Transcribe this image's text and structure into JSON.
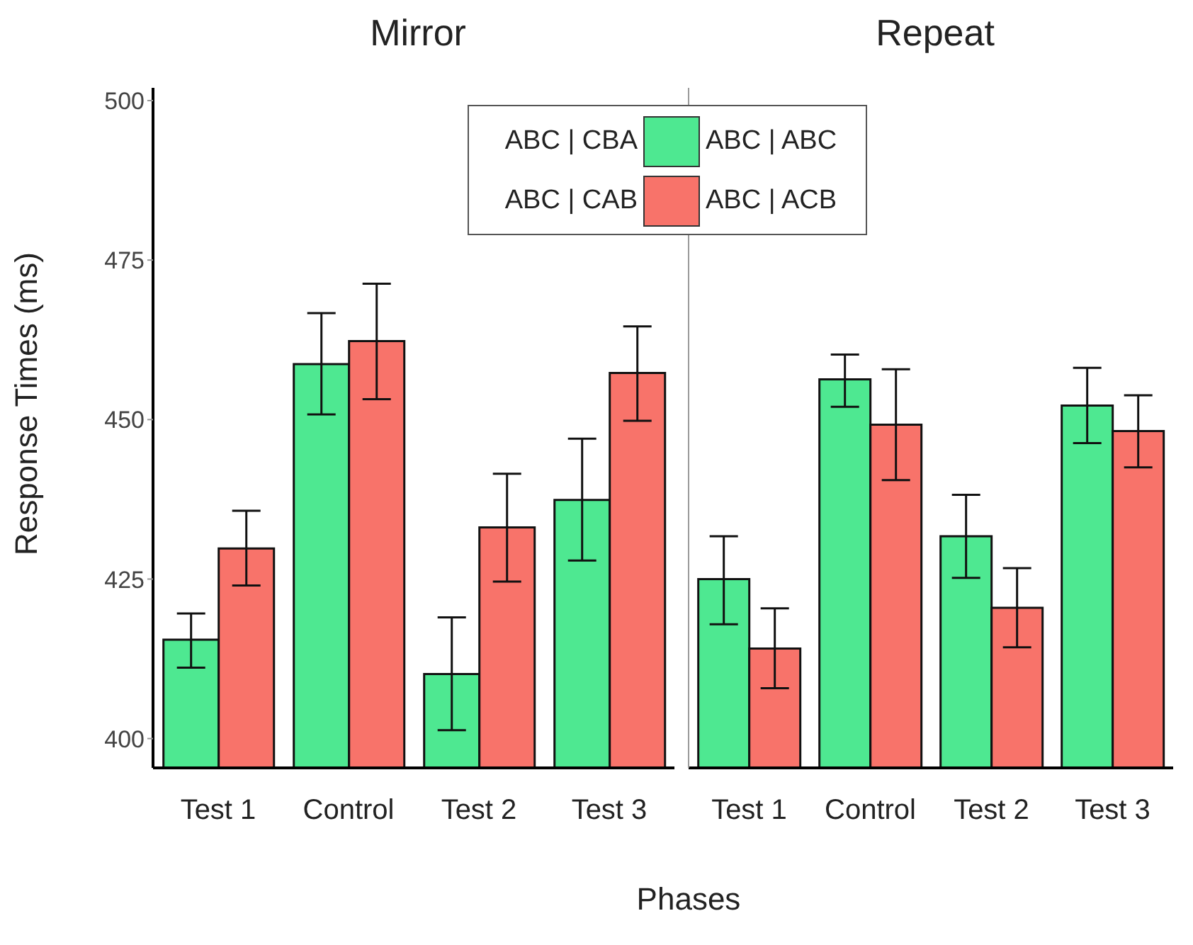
{
  "chart_data": [
    {
      "type": "bar",
      "title": "Mirror",
      "ylabel": "Response Times (ms)",
      "categories": [
        "Test 1",
        "Control",
        "Test 2",
        "Test 3"
      ],
      "ylim": [
        395.4,
        502
      ],
      "yticks": [
        400,
        425,
        450,
        475,
        500
      ],
      "legend": "top",
      "grid": false,
      "series": [
        {
          "name": "ABC | CBA",
          "color": "#4ee891",
          "values": [
            415.5,
            458.7,
            410.1,
            437.4
          ],
          "errors": [
            [
              411.1,
              419.6
            ],
            [
              450.8,
              466.7
            ],
            [
              401.3,
              419
            ],
            [
              427.9,
              447
            ]
          ]
        },
        {
          "name": "ABC | CAB",
          "color": "#f8736a",
          "values": [
            429.8,
            462.3,
            433.1,
            457.3
          ],
          "errors": [
            [
              424,
              435.7
            ],
            [
              453.2,
              471.3
            ],
            [
              424.6,
              441.5
            ],
            [
              449.8,
              464.6
            ]
          ]
        }
      ]
    },
    {
      "type": "bar",
      "title": "Repeat",
      "xlabel": "Phases",
      "categories": [
        "Test 1",
        "Control",
        "Test 2",
        "Test 3"
      ],
      "ylim": [
        395.4,
        502
      ],
      "yticks": [
        400,
        425,
        450,
        475,
        500
      ],
      "tick_labels": "x",
      "legend": "top",
      "grid": false,
      "series": [
        {
          "name": "ABC | ABC",
          "color": "#4ee891",
          "values": [
            425,
            456.3,
            431.7,
            452.2
          ],
          "errors": [
            [
              417.9,
              431.7
            ],
            [
              452,
              460.2
            ],
            [
              425.2,
              438.2
            ],
            [
              446.3,
              458.1
            ]
          ]
        },
        {
          "name": "ABC | ACB",
          "color": "#f8736a",
          "values": [
            414.1,
            449.2,
            420.5,
            448.2
          ],
          "errors": [
            [
              407.9,
              420.4
            ],
            [
              440.5,
              457.9
            ],
            [
              414.3,
              426.7
            ],
            [
              442.5,
              453.8
            ]
          ]
        }
      ]
    }
  ]
}
